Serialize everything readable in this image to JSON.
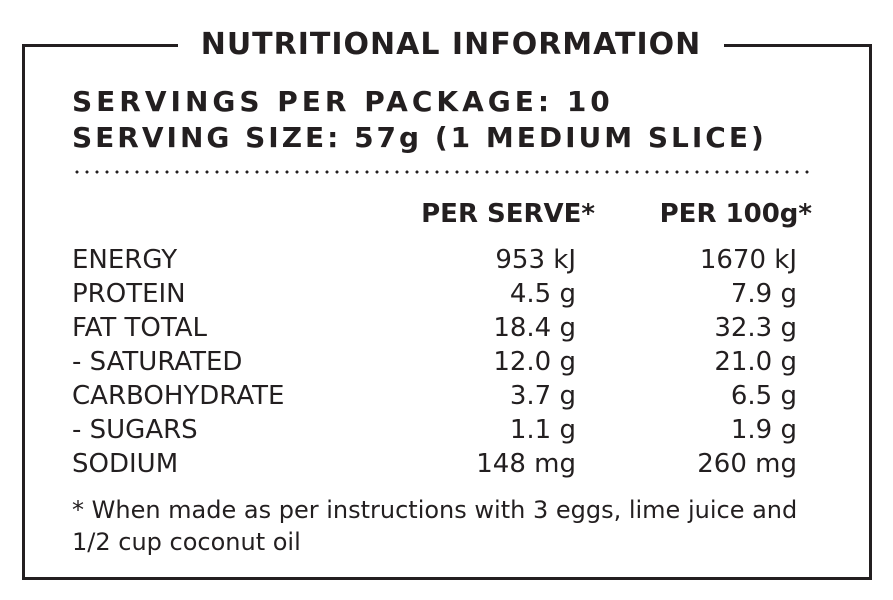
{
  "title": "NUTRITIONAL INFORMATION",
  "servings_per_package": "SERVINGS PER PACKAGE: 10",
  "serving_size": "SERVING SIZE: 57g (1 MEDIUM SLICE)",
  "columns": {
    "per_serve": "PER SERVE*",
    "per_100g": "PER 100g*"
  },
  "nutrients": [
    {
      "name": "ENERGY",
      "per_serve": "953 kJ",
      "per_100g": "1670 kJ"
    },
    {
      "name": "PROTEIN",
      "per_serve": "4.5 g",
      "per_100g": "7.9 g"
    },
    {
      "name": "FAT TOTAL",
      "per_serve": "18.4 g",
      "per_100g": "32.3 g"
    },
    {
      "name": "- SATURATED",
      "per_serve": "12.0 g",
      "per_100g": "21.0 g"
    },
    {
      "name": "CARBOHYDRATE",
      "per_serve": "3.7 g",
      "per_100g": "6.5 g"
    },
    {
      "name": "- SUGARS",
      "per_serve": "1.1 g",
      "per_100g": "1.9 g"
    },
    {
      "name": "SODIUM",
      "per_serve": "148 mg",
      "per_100g": "260 mg"
    }
  ],
  "footnote": "* When made as per instructions with 3 eggs, lime juice and 1/2 cup coconut oil",
  "colors": {
    "ink": "#231f20",
    "background": "#ffffff"
  }
}
